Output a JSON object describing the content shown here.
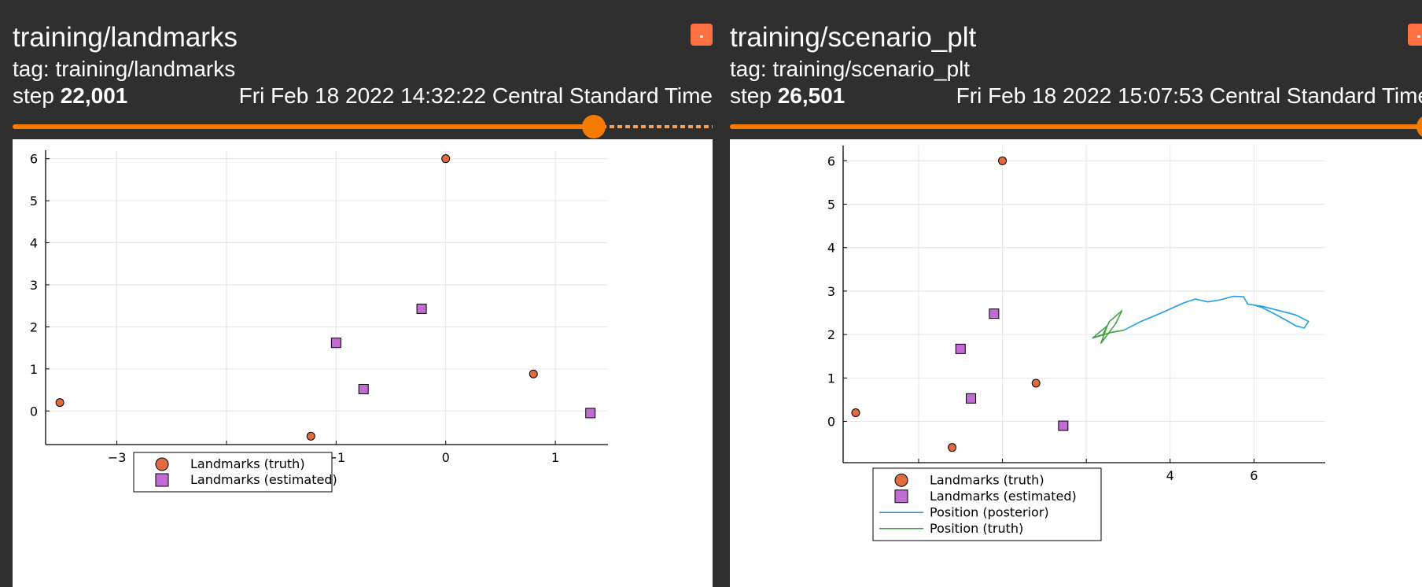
{
  "colors": {
    "truth": "#e26a3f",
    "estimated": "#c36bd4",
    "posterior": "#1f9ee6",
    "position_truth": "#3fa33f",
    "accent": "#f57c00"
  },
  "cards": [
    {
      "title": "training/landmarks",
      "tag": "tag: training/landmarks",
      "step_label": "step",
      "step_value": "22,001",
      "timestamp": "Fri Feb 18 2022 14:32:22 Central Standard Time",
      "slider_fraction": 0.83
    },
    {
      "title": "training/scenario_plt",
      "tag": "tag: training/scenario_plt",
      "step_label": "step",
      "step_value": "26,501",
      "timestamp": "Fri Feb 18 2022 15:07:53 Central Standard Time",
      "slider_fraction": 1.0
    }
  ],
  "chart_data": [
    {
      "type": "scatter",
      "title": "",
      "xlim": [
        -3.65,
        1.48
      ],
      "ylim": [
        -0.8,
        6.2
      ],
      "xticks": [
        -3,
        -2,
        -1,
        0,
        1
      ],
      "yticks": [
        0,
        1,
        2,
        3,
        4,
        5,
        6
      ],
      "grid": true,
      "legend_position": "bottom-center",
      "series": [
        {
          "name": "Landmarks (truth)",
          "marker": "circle",
          "x": [
            -3.52,
            -1.23,
            0.0,
            0.8
          ],
          "y": [
            0.2,
            -0.6,
            6.0,
            0.88
          ]
        },
        {
          "name": "Landmarks (estimated)",
          "marker": "square",
          "x": [
            -1.0,
            -0.75,
            -0.22,
            1.32
          ],
          "y": [
            1.62,
            0.52,
            2.43,
            -0.05
          ]
        }
      ]
    },
    {
      "type": "line",
      "title": "",
      "xlim": [
        -3.8,
        7.7
      ],
      "ylim": [
        -0.95,
        6.35
      ],
      "xticks": [
        -2,
        0,
        2,
        4,
        6
      ],
      "yticks": [
        0,
        1,
        2,
        3,
        4,
        5,
        6
      ],
      "grid": true,
      "legend_position": "bottom-left",
      "series": [
        {
          "name": "Landmarks (truth)",
          "marker": "circle",
          "x": [
            -3.5,
            -1.2,
            0.0,
            0.8
          ],
          "y": [
            0.2,
            -0.6,
            6.0,
            0.88
          ]
        },
        {
          "name": "Landmarks (estimated)",
          "marker": "square",
          "x": [
            -1.0,
            -0.75,
            -0.2,
            1.45
          ],
          "y": [
            1.67,
            0.53,
            2.48,
            -0.1
          ]
        },
        {
          "name": "Position (posterior)",
          "marker": "line",
          "x": [
            2.9,
            3.3,
            3.8,
            4.3,
            4.6,
            4.9,
            5.2,
            5.5,
            5.75,
            5.85,
            6.2,
            6.6,
            7.0,
            7.3,
            7.2,
            7.0,
            6.6,
            6.2,
            6.0
          ],
          "y": [
            2.1,
            2.3,
            2.5,
            2.72,
            2.82,
            2.75,
            2.8,
            2.88,
            2.87,
            2.7,
            2.65,
            2.55,
            2.45,
            2.3,
            2.15,
            2.2,
            2.42,
            2.62,
            2.68
          ]
        },
        {
          "name": "Position (truth)",
          "marker": "line",
          "x": [
            2.9,
            2.6,
            2.15,
            2.5,
            2.35,
            2.7,
            2.85,
            2.55,
            2.4,
            2.15
          ],
          "y": [
            2.1,
            2.05,
            1.92,
            2.2,
            1.8,
            2.25,
            2.55,
            2.3,
            2.0,
            1.92
          ]
        }
      ]
    }
  ]
}
